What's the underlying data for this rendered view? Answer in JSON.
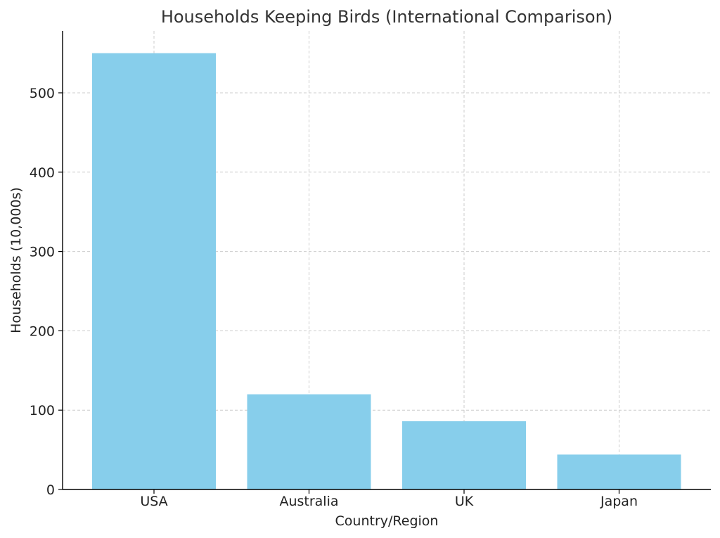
{
  "chart_data": {
    "type": "bar",
    "title": "Households Keeping Birds (International Comparison)",
    "xlabel": "Country/Region",
    "ylabel": "Households (10,000s)",
    "categories": [
      "USA",
      "Australia",
      "UK",
      "Japan"
    ],
    "values": [
      550,
      120,
      86,
      44
    ],
    "ylim": [
      0,
      578
    ],
    "yticks": [
      0,
      100,
      200,
      300,
      400,
      500
    ],
    "grid": true,
    "bar_color": "#87CEEB"
  }
}
